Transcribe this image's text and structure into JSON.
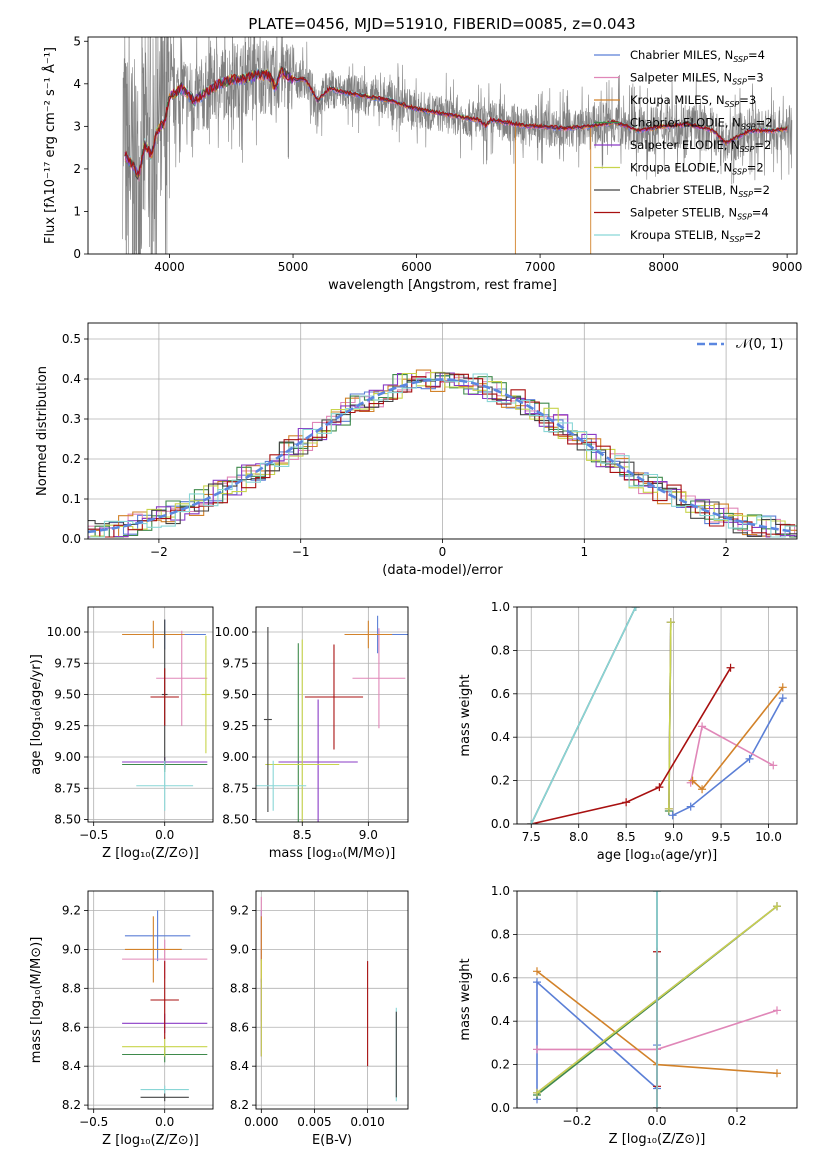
{
  "figure_title": "PLATE=0456, MJD=51910, FIBERID=0085, z=0.043",
  "palette": [
    "#5b7fd6",
    "#e087b8",
    "#d2822a",
    "#3e8a4b",
    "#8a3bc6",
    "#c8d44c",
    "#444444",
    "#a81010",
    "#89d6d6"
  ],
  "chart_data": [
    {
      "id": "spectrum",
      "type": "line",
      "title": "PLATE=0456, MJD=51910, FIBERID=0085, z=0.043",
      "xlabel": "wavelength [Angstrom, rest frame]",
      "ylabel": "Flux [fλ10⁻¹⁷ erg cm⁻² s⁻¹ Å⁻¹]",
      "xlim": [
        3340,
        9080
      ],
      "ylim": [
        0,
        5.1
      ],
      "xticks": [
        4000,
        5000,
        6000,
        7000,
        8000,
        9000
      ],
      "yticks": [
        0,
        1,
        2,
        3,
        4,
        5
      ],
      "grid": false,
      "legend_position": "top-right",
      "data_color": "#808080",
      "legend": [
        {
          "label": "Chabrier MILES, N",
          "sub": "SSP",
          "suffix": "=4"
        },
        {
          "label": "Salpeter MILES, N",
          "sub": "SSP",
          "suffix": "=3"
        },
        {
          "label": "Kroupa MILES, N",
          "sub": "SSP",
          "suffix": "=3"
        },
        {
          "label": "Chabrier ELODIE, N",
          "sub": "SSP",
          "suffix": "=2"
        },
        {
          "label": "Salpeter ELODIE, N",
          "sub": "SSP",
          "suffix": "=2"
        },
        {
          "label": "Kroupa ELODIE, N",
          "sub": "SSP",
          "suffix": "=2"
        },
        {
          "label": "Chabrier STELIB, N",
          "sub": "SSP",
          "suffix": "=2"
        },
        {
          "label": "Salpeter STELIB, N",
          "sub": "SSP",
          "suffix": "=4"
        },
        {
          "label": "Kroupa STELIB, N",
          "sub": "SSP",
          "suffix": "=2"
        }
      ],
      "continuum": [
        [
          3640,
          2.3
        ],
        [
          3700,
          2.1
        ],
        [
          3750,
          1.8
        ],
        [
          3800,
          2.6
        ],
        [
          3850,
          2.3
        ],
        [
          3900,
          2.9
        ],
        [
          3960,
          3.1
        ],
        [
          4000,
          3.7
        ],
        [
          4100,
          3.9
        ],
        [
          4200,
          3.6
        ],
        [
          4300,
          3.8
        ],
        [
          4400,
          4.0
        ],
        [
          4500,
          4.1
        ],
        [
          4600,
          4.1
        ],
        [
          4700,
          4.2
        ],
        [
          4800,
          4.2
        ],
        [
          4860,
          3.9
        ],
        [
          4900,
          4.3
        ],
        [
          5000,
          4.1
        ],
        [
          5100,
          4.1
        ],
        [
          5200,
          3.6
        ],
        [
          5300,
          3.9
        ],
        [
          5400,
          3.8
        ],
        [
          5500,
          3.75
        ],
        [
          5600,
          3.7
        ],
        [
          5700,
          3.65
        ],
        [
          5800,
          3.6
        ],
        [
          5900,
          3.5
        ],
        [
          6000,
          3.4
        ],
        [
          6100,
          3.35
        ],
        [
          6200,
          3.3
        ],
        [
          6300,
          3.25
        ],
        [
          6400,
          3.2
        ],
        [
          6500,
          3.15
        ],
        [
          6563,
          3.0
        ],
        [
          6600,
          3.15
        ],
        [
          6700,
          3.1
        ],
        [
          6800,
          3.05
        ],
        [
          6900,
          3.0
        ],
        [
          7000,
          3.0
        ],
        [
          7200,
          2.95
        ],
        [
          7400,
          3.0
        ],
        [
          7600,
          3.1
        ],
        [
          7800,
          2.9
        ],
        [
          8000,
          3.0
        ],
        [
          8200,
          3.05
        ],
        [
          8400,
          2.9
        ],
        [
          8500,
          2.6
        ],
        [
          8700,
          2.9
        ],
        [
          8900,
          2.9
        ],
        [
          9000,
          2.95
        ]
      ]
    },
    {
      "id": "residuals",
      "type": "line",
      "xlabel": "(data-model)/error",
      "ylabel": "Normed distribution",
      "xlim": [
        -2.5,
        2.5
      ],
      "ylim": [
        0,
        0.54
      ],
      "xticks": [
        -2,
        -1,
        0,
        1,
        2
      ],
      "yticks": [
        0.0,
        0.1,
        0.2,
        0.3,
        0.4,
        0.5
      ],
      "grid": true,
      "legend_position": "top-right",
      "gauss_label": "𝒩(0, 1)",
      "gauss_color": "#5b87e0",
      "bin_width": 0.1
    },
    {
      "id": "age-vs-z",
      "type": "scatter",
      "xlabel": "Z [log₁₀(Z/Z⊙)]",
      "ylabel": "age  [log₁₀(age/yr)]",
      "xlim": [
        -0.54,
        0.34
      ],
      "ylim": [
        8.48,
        10.2
      ],
      "xticks": [
        -0.5,
        0.0
      ],
      "xticklabels": [
        "−0.5",
        "0.0"
      ],
      "yticks": [
        8.5,
        8.75,
        9.0,
        9.25,
        9.5,
        9.75,
        10.0
      ],
      "grid": true,
      "errorbars": [
        {
          "x": 0.0,
          "y": 9.98,
          "xerr": 0.29,
          "yerr": 0.12,
          "c": 0
        },
        {
          "x": 0.12,
          "y": 9.63,
          "xerr": 0.18,
          "yerr": 0.38,
          "c": 1
        },
        {
          "x": -0.08,
          "y": 9.98,
          "xerr": 0.22,
          "yerr": 0.11,
          "c": 2
        },
        {
          "x": 0.0,
          "y": 8.94,
          "xerr": 0.3,
          "yerr": 0.06,
          "c": 3
        },
        {
          "x": 0.0,
          "y": 8.96,
          "xerr": 0.3,
          "yerr": 0.04,
          "c": 4
        },
        {
          "x": 0.29,
          "y": 9.5,
          "xerr": 0.03,
          "yerr": 0.47,
          "c": 5
        },
        {
          "x": 0.0,
          "y": 9.5,
          "xerr": 0.02,
          "yerr": 0.6,
          "c": 6
        },
        {
          "x": 0.0,
          "y": 9.48,
          "xerr": 0.1,
          "yerr": 0.23,
          "c": 7
        },
        {
          "x": 0.0,
          "y": 8.77,
          "xerr": 0.2,
          "yerr": 0.2,
          "c": 8
        }
      ]
    },
    {
      "id": "age-vs-mass",
      "type": "scatter",
      "xlabel": "mass [log₁₀(M/M⊙)]",
      "ylabel": "",
      "xlim": [
        8.15,
        9.3
      ],
      "ylim": [
        8.48,
        10.2
      ],
      "xticks": [
        8.5,
        9.0
      ],
      "xticklabels": [
        "8.5",
        "9.0"
      ],
      "yticks": [
        8.5,
        8.75,
        9.0,
        9.25,
        9.5,
        9.75,
        10.0
      ],
      "grid": true,
      "errorbars": [
        {
          "x": 9.07,
          "y": 9.98,
          "xerr": 0.25,
          "yerr": 0.15,
          "c": 0
        },
        {
          "x": 9.08,
          "y": 9.63,
          "xerr": 0.2,
          "yerr": 0.4,
          "c": 1
        },
        {
          "x": 9.0,
          "y": 9.98,
          "xerr": 0.18,
          "yerr": 0.11,
          "c": 2
        },
        {
          "x": 8.47,
          "y": 8.94,
          "xerr": 0.23,
          "yerr": 0.97,
          "c": 3
        },
        {
          "x": 8.62,
          "y": 8.96,
          "xerr": 0.3,
          "yerr": 0.5,
          "c": 4
        },
        {
          "x": 8.5,
          "y": 8.94,
          "xerr": 0.28,
          "yerr": 1.0,
          "c": 5
        },
        {
          "x": 8.24,
          "y": 9.3,
          "xerr": 0.03,
          "yerr": 0.74,
          "c": 6
        },
        {
          "x": 8.74,
          "y": 9.48,
          "xerr": 0.22,
          "yerr": 0.42,
          "c": 7
        },
        {
          "x": 8.28,
          "y": 8.77,
          "xerr": 0.25,
          "yerr": 0.2,
          "c": 8
        }
      ]
    },
    {
      "id": "weight-vs-age",
      "type": "line",
      "xlabel": "age  [log₁₀(age/yr)]",
      "ylabel": "mass weight",
      "xlim": [
        7.35,
        10.3
      ],
      "ylim": [
        0,
        1.0
      ],
      "xticks": [
        7.5,
        8.0,
        8.5,
        9.0,
        9.5,
        10.0
      ],
      "xticklabels": [
        "7.5",
        "8.0",
        "8.5",
        "9.0",
        "9.5",
        "10.0"
      ],
      "yticks": [
        0.0,
        0.2,
        0.4,
        0.6,
        0.8,
        1.0
      ],
      "grid": true,
      "series": [
        {
          "c": 0,
          "x": [
            8.99,
            9.18,
            9.8,
            10.15
          ],
          "y": [
            0.04,
            0.08,
            0.3,
            0.58
          ]
        },
        {
          "c": 1,
          "x": [
            9.18,
            9.3,
            10.05
          ],
          "y": [
            0.19,
            0.45,
            0.27
          ]
        },
        {
          "c": 2,
          "x": [
            9.2,
            9.3,
            10.15
          ],
          "y": [
            0.2,
            0.16,
            0.63
          ]
        },
        {
          "c": 3,
          "x": [
            8.95,
            8.97
          ],
          "y": [
            0.06,
            0.93
          ]
        },
        {
          "c": 4,
          "x": [
            8.95,
            8.97
          ],
          "y": [
            0.07,
            0.93
          ]
        },
        {
          "c": 5,
          "x": [
            8.95,
            8.97
          ],
          "y": [
            0.07,
            0.93
          ]
        },
        {
          "c": 6,
          "x": [
            7.5,
            8.6
          ],
          "y": [
            0.0,
            1.0
          ]
        },
        {
          "c": 7,
          "x": [
            7.5,
            8.5,
            8.85,
            9.6
          ],
          "y": [
            0.0,
            0.1,
            0.17,
            0.72
          ]
        },
        {
          "c": 8,
          "x": [
            7.5,
            8.6
          ],
          "y": [
            0.0,
            1.0
          ]
        }
      ]
    },
    {
      "id": "mass-vs-z",
      "type": "scatter",
      "xlabel": "Z [log₁₀(Z/Z⊙)]",
      "ylabel": "mass [log₁₀(M/M⊙)]",
      "xlim": [
        -0.54,
        0.34
      ],
      "ylim": [
        8.18,
        9.3
      ],
      "xticks": [
        -0.5,
        0.0
      ],
      "xticklabels": [
        "−0.5",
        "0.0"
      ],
      "yticks": [
        8.2,
        8.4,
        8.6,
        8.8,
        9.0,
        9.2
      ],
      "grid": true,
      "errorbars": [
        {
          "x": -0.05,
          "y": 9.07,
          "xerr": 0.23,
          "yerr": 0.13,
          "c": 0
        },
        {
          "x": 0.0,
          "y": 8.95,
          "xerr": 0.3,
          "yerr": 0.1,
          "c": 1
        },
        {
          "x": -0.08,
          "y": 9.0,
          "xerr": 0.2,
          "yerr": 0.17,
          "c": 2
        },
        {
          "x": 0.0,
          "y": 8.46,
          "xerr": 0.3,
          "yerr": 0.04,
          "c": 3
        },
        {
          "x": 0.0,
          "y": 8.62,
          "xerr": 0.3,
          "yerr": 0.05,
          "c": 4
        },
        {
          "x": 0.0,
          "y": 8.5,
          "xerr": 0.3,
          "yerr": 0.05,
          "c": 5
        },
        {
          "x": 0.0,
          "y": 8.24,
          "xerr": 0.17,
          "yerr": 0.02,
          "c": 6
        },
        {
          "x": 0.0,
          "y": 8.74,
          "xerr": 0.1,
          "yerr": 0.2,
          "c": 7
        },
        {
          "x": 0.0,
          "y": 8.28,
          "xerr": 0.17,
          "yerr": 0.02,
          "c": 8
        }
      ]
    },
    {
      "id": "mass-vs-ebv",
      "type": "scatter",
      "xlabel": "E(B-V)",
      "ylabel": "",
      "xlim": [
        -0.0005,
        0.0138
      ],
      "ylim": [
        8.18,
        9.3
      ],
      "xticks": [
        0.0,
        0.005,
        0.01
      ],
      "xticklabels": [
        "0.000",
        "0.005",
        "0.010"
      ],
      "yticks": [
        8.2,
        8.4,
        8.6,
        8.8,
        9.0,
        9.2
      ],
      "grid": true,
      "errorbars": [
        {
          "x": 0.0,
          "y": 9.07,
          "xerr": 0.0,
          "yerr": 0.13,
          "c": 0
        },
        {
          "x": 0.0,
          "y": 8.95,
          "xerr": 0.0,
          "yerr": 0.32,
          "c": 1
        },
        {
          "x": 0.0,
          "y": 9.0,
          "xerr": 0.0,
          "yerr": 0.17,
          "c": 2
        },
        {
          "x": 0.0,
          "y": 8.65,
          "xerr": 0.0,
          "yerr": 0.2,
          "c": 4
        },
        {
          "x": 0.0,
          "y": 8.7,
          "xerr": 0.0,
          "yerr": 0.25,
          "c": 5
        },
        {
          "x": 0.01,
          "y": 8.67,
          "xerr": 0.0,
          "yerr": 0.27,
          "c": 7
        },
        {
          "x": 0.0127,
          "y": 8.46,
          "xerr": 0.0,
          "yerr": 0.24,
          "c": 8
        },
        {
          "x": 0.0127,
          "y": 8.46,
          "xerr": 0.0,
          "yerr": 0.22,
          "c": 6
        }
      ]
    },
    {
      "id": "weight-vs-z",
      "type": "line",
      "xlabel": "Z [log₁₀(Z/Z⊙)]",
      "ylabel": "mass weight",
      "xlim": [
        -0.35,
        0.35
      ],
      "ylim": [
        0,
        1.0
      ],
      "xticks": [
        -0.2,
        0.0,
        0.2
      ],
      "xticklabels": [
        "−0.2",
        "0.0",
        "0.2"
      ],
      "yticks": [
        0.0,
        0.2,
        0.4,
        0.6,
        0.8,
        1.0
      ],
      "grid": true,
      "series": [
        {
          "c": 0,
          "x": [
            -0.3,
            -0.3,
            0.0,
            0.0
          ],
          "y": [
            0.04,
            0.58,
            0.09,
            0.29
          ]
        },
        {
          "c": 1,
          "x": [
            -0.3,
            0.0,
            0.3
          ],
          "y": [
            0.27,
            0.27,
            0.45
          ]
        },
        {
          "c": 2,
          "x": [
            -0.3,
            0.0,
            0.3
          ],
          "y": [
            0.63,
            0.2,
            0.16
          ]
        },
        {
          "c": 3,
          "x": [
            -0.3,
            0.3
          ],
          "y": [
            0.06,
            0.93
          ]
        },
        {
          "c": 4,
          "x": [
            -0.3,
            0.3
          ],
          "y": [
            0.07,
            0.93
          ]
        },
        {
          "c": 5,
          "x": [
            -0.3,
            0.3
          ],
          "y": [
            0.07,
            0.93
          ]
        },
        {
          "c": 6,
          "x": [
            0.0,
            0.0
          ],
          "y": [
            0.0,
            1.0
          ]
        },
        {
          "c": 7,
          "x": [
            0.0,
            0.0,
            0.0
          ],
          "y": [
            0.0,
            0.1,
            0.72
          ]
        },
        {
          "c": 8,
          "x": [
            0.0,
            0.0
          ],
          "y": [
            0.0,
            1.0
          ]
        }
      ]
    }
  ]
}
